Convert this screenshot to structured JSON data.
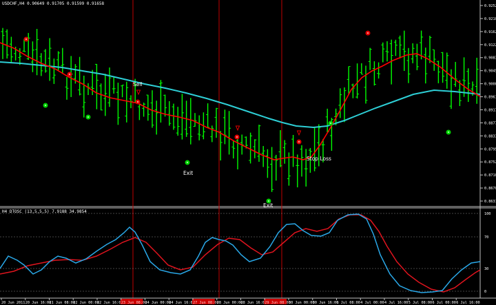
{
  "main_panel": {
    "symbol_info": "USDCHF,H4",
    "ohlc_info": "0.90649 0.91705 0.91599 0.91658",
    "price_labels": [
      "0.92520",
      "0.92100",
      "0.91625",
      "0.91220",
      "0.90830",
      "0.90450",
      "0.90005",
      "0.89610",
      "0.89170",
      "0.88770",
      "0.88330",
      "0.87950",
      "0.87525",
      "0.87100",
      "0.86700",
      "0.86310"
    ],
    "annotations": [
      {
        "text": "Sell",
        "type": "label"
      },
      {
        "text": "Exit",
        "type": "label"
      },
      {
        "text": "Exit",
        "type": "label"
      },
      {
        "text": "Stop Loss",
        "type": "label"
      }
    ]
  },
  "oscillator_panel": {
    "indicator_info": "H4 DTOSC (13,5,5,5) 7.9188 34.9854",
    "level_labels": [
      "100",
      "70",
      "30",
      "0"
    ]
  },
  "time_axis": {
    "labels": [
      "20 Jun 2011",
      "20 Jun 16:00",
      "21 Jun 08:00",
      "22 Jun 00:00",
      "22 Jun 16:00",
      "23 Jun 08:00",
      "24 Jun 00:00",
      "24 Jun 16:00",
      "27 Jun 08:00",
      "28 Jun 00:00",
      "28 Jun 16:00",
      "29 Jun 08:00",
      "30 Jun 00:00",
      "30 Jun 16:00",
      "1 Jul 08:00",
      "4 Jul 00:00",
      "4 Jul 16:00",
      "5 Jul 08:00",
      "6 Jul 00:00",
      "6 Jul 16:00"
    ],
    "highlighted": [
      "23 Jun 08:00",
      "27 Jun 08:00",
      "29 Jun 08:00"
    ]
  },
  "colors": {
    "background": "#000000",
    "bars": "#00ff00",
    "red_ma": "#ff0000",
    "cyan_ma": "#2ecfd6",
    "osc_fast": "#2aa8e8",
    "osc_slow": "#e0141e",
    "axis": "#c0c0c0",
    "signal_lines": "#c00000",
    "highlight_bg": "#cc0000"
  }
}
